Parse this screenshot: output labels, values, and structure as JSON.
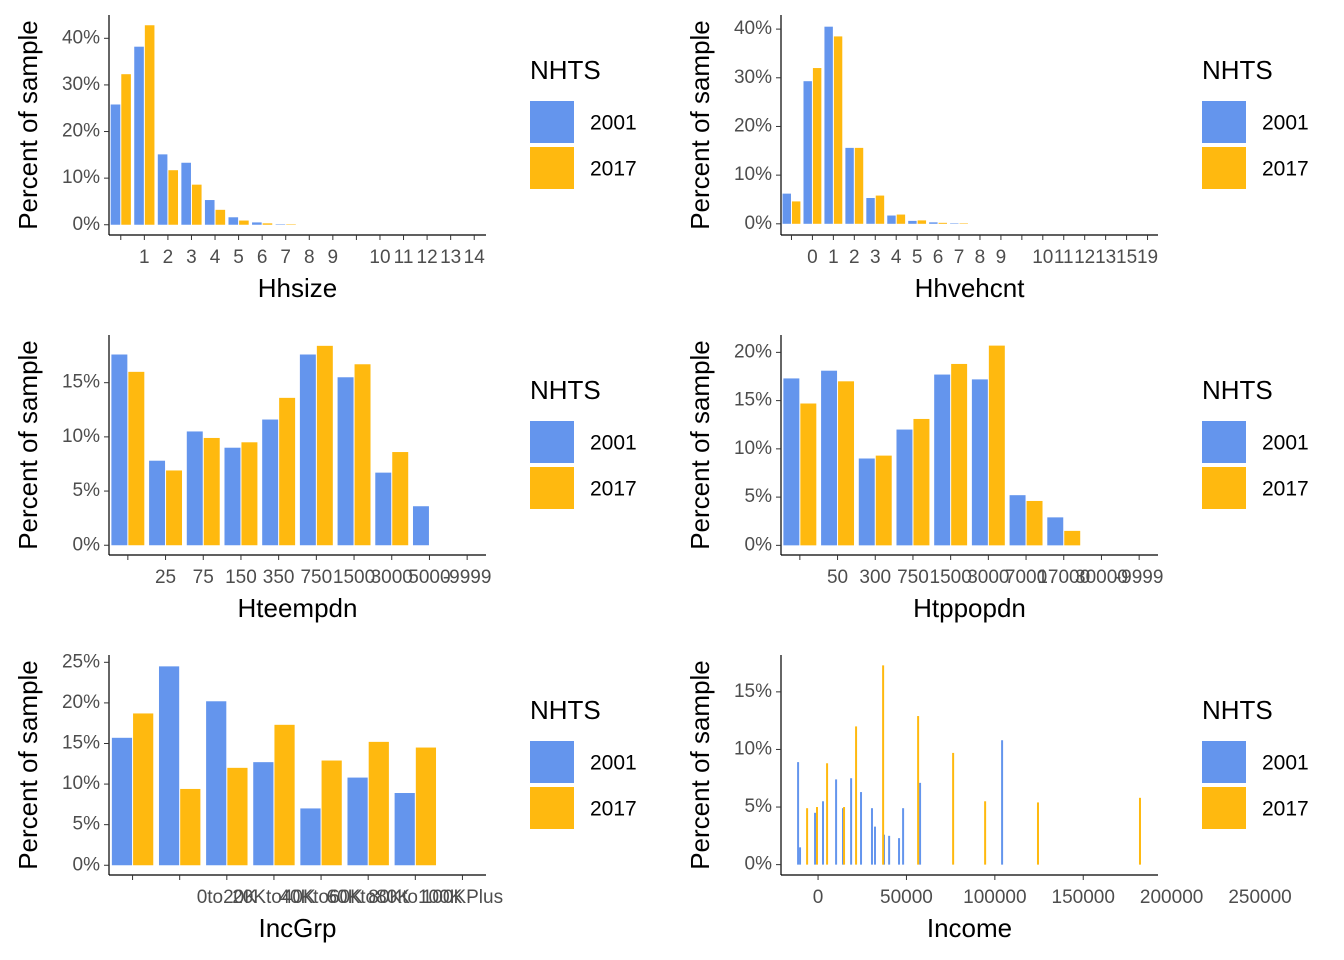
{
  "chart_data": [
    {
      "type": "bar",
      "y_label": "Percent of sample",
      "x_label": "Hhsize",
      "legend_title": "NHTS",
      "categories": [
        null,
        "1",
        "2",
        "3",
        "4",
        "5",
        "6",
        "7",
        "8",
        "9",
        null,
        "10",
        "11",
        "12",
        "13",
        "14"
      ],
      "series": [
        {
          "name": "2001",
          "color": "#6495ED",
          "values": [
            25.8,
            38.2,
            15.1,
            13.3,
            5.3,
            1.6,
            0.5,
            0.1,
            0,
            0,
            0,
            0,
            0,
            0,
            0,
            0
          ]
        },
        {
          "name": "2017",
          "color": "#FFB90F",
          "values": [
            32.3,
            42.8,
            11.7,
            8.6,
            3.2,
            0.9,
            0.3,
            0.1,
            0,
            0,
            0,
            0,
            0,
            0,
            0,
            0
          ]
        }
      ],
      "ylim": [
        -2.2,
        45
      ],
      "yticks": [
        {
          "value": 0,
          "label": "0%"
        },
        {
          "value": 10,
          "label": "10%"
        },
        {
          "value": 20,
          "label": "20%"
        },
        {
          "value": 30,
          "label": "30%"
        },
        {
          "value": 40,
          "label": "40%"
        }
      ]
    },
    {
      "type": "bar",
      "y_label": "Percent of sample",
      "x_label": "Hhvehcnt",
      "legend_title": "NHTS",
      "categories": [
        null,
        "0",
        "1",
        "2",
        "3",
        "4",
        "5",
        "6",
        "7",
        "8",
        "9",
        null,
        "10",
        "11",
        "12",
        "13",
        "15",
        "19"
      ],
      "series": [
        {
          "name": "2001",
          "color": "#6495ED",
          "values": [
            6.2,
            29.3,
            40.5,
            15.6,
            5.3,
            1.7,
            0.6,
            0.3,
            0.1,
            0,
            0,
            0,
            0,
            0,
            0,
            0,
            0,
            0
          ]
        },
        {
          "name": "2017",
          "color": "#FFB90F",
          "values": [
            4.6,
            32.0,
            38.5,
            15.6,
            5.8,
            1.9,
            0.7,
            0.2,
            0.1,
            0,
            0,
            0,
            0,
            0,
            0,
            0,
            0,
            0
          ]
        }
      ],
      "ylim": [
        -2.3,
        42.9
      ],
      "yticks": [
        {
          "value": 0,
          "label": "0%"
        },
        {
          "value": 10,
          "label": "10%"
        },
        {
          "value": 20,
          "label": "20%"
        },
        {
          "value": 30,
          "label": "30%"
        },
        {
          "value": 40,
          "label": "40%"
        }
      ]
    },
    {
      "type": "bar",
      "y_label": "Percent of sample",
      "x_label": "Hteempdn",
      "legend_title": "NHTS",
      "categories": [
        null,
        "25",
        "75",
        "150",
        "350",
        "750",
        "1500",
        "3000",
        "5000",
        "-9999"
      ],
      "series": [
        {
          "name": "2001",
          "color": "#6495ED",
          "values": [
            17.6,
            7.8,
            10.5,
            9.0,
            11.6,
            17.6,
            15.5,
            6.7,
            3.6,
            null
          ]
        },
        {
          "name": "2017",
          "color": "#FFB90F",
          "values": [
            16.0,
            6.9,
            9.9,
            9.5,
            13.6,
            18.4,
            16.7,
            8.6,
            null,
            null
          ]
        }
      ],
      "ylim": [
        -0.9,
        19.4
      ],
      "yticks": [
        {
          "value": 0,
          "label": "0%"
        },
        {
          "value": 5,
          "label": "5%"
        },
        {
          "value": 10,
          "label": "10%"
        },
        {
          "value": 15,
          "label": "15%"
        }
      ]
    },
    {
      "type": "bar",
      "y_label": "Percent of sample",
      "x_label": "Htppopdn",
      "legend_title": "NHTS",
      "categories": [
        null,
        "50",
        "300",
        "750",
        "1500",
        "3000",
        "7000",
        "17000",
        "30000",
        "-9999"
      ],
      "series": [
        {
          "name": "2001",
          "color": "#6495ED",
          "values": [
            17.3,
            18.1,
            9.0,
            12.0,
            17.7,
            17.2,
            5.2,
            2.9,
            null,
            null
          ]
        },
        {
          "name": "2017",
          "color": "#FFB90F",
          "values": [
            14.7,
            17.0,
            9.3,
            13.1,
            18.8,
            20.7,
            4.6,
            1.5,
            null,
            null
          ]
        }
      ],
      "ylim": [
        -1.0,
        21.8
      ],
      "yticks": [
        {
          "value": 0,
          "label": "0%"
        },
        {
          "value": 5,
          "label": "5%"
        },
        {
          "value": 10,
          "label": "10%"
        },
        {
          "value": 15,
          "label": "15%"
        },
        {
          "value": 20,
          "label": "20%"
        }
      ]
    },
    {
      "type": "bar",
      "y_label": "Percent of sample",
      "x_label": "IncGrp",
      "legend_title": "NHTS",
      "categories": [
        null,
        null,
        "0to20K",
        "20Kto40K",
        "40Kto60K",
        "60Kto80K",
        "80Kto100K",
        "100KPlus"
      ],
      "series": [
        {
          "name": "2001",
          "color": "#6495ED",
          "values": [
            15.7,
            24.5,
            20.2,
            12.7,
            7.0,
            10.8,
            8.9,
            null
          ]
        },
        {
          "name": "2017",
          "color": "#FFB90F",
          "values": [
            18.7,
            9.4,
            12.0,
            17.3,
            12.9,
            15.2,
            14.5,
            null
          ]
        }
      ],
      "ylim": [
        -1.2,
        25.9
      ],
      "yticks": [
        {
          "value": 0,
          "label": "0%"
        },
        {
          "value": 5,
          "label": "5%"
        },
        {
          "value": 10,
          "label": "10%"
        },
        {
          "value": 15,
          "label": "15%"
        },
        {
          "value": 20,
          "label": "20%"
        },
        {
          "value": 25,
          "label": "25%"
        }
      ]
    },
    {
      "type": "spike",
      "y_label": "Percent of sample",
      "x_label": "Income",
      "legend_title": "NHTS",
      "series": [
        {
          "name": "2001",
          "color": "#6495ED",
          "x": [
            -11300,
            -10200,
            -1700,
            2800,
            10200,
            14100,
            18700,
            24300,
            30500,
            32200,
            37300,
            40200,
            45800,
            48100,
            57700,
            104100
          ],
          "values": [
            8.9,
            1.5,
            4.5,
            5.5,
            7.4,
            4.9,
            7.5,
            6.3,
            4.9,
            3.3,
            2.6,
            2.5,
            2.3,
            4.9,
            7.1,
            10.8
          ]
        },
        {
          "name": "2017",
          "color": "#FFB90F",
          "x": [
            -6200,
            -600,
            5100,
            14700,
            21500,
            36800,
            56600,
            76400,
            94500,
            124400,
            182100
          ],
          "values": [
            4.9,
            5.0,
            8.8,
            5.0,
            12.0,
            17.3,
            12.9,
            9.7,
            5.5,
            5.4,
            5.8
          ]
        }
      ],
      "xlim": [
        -20400,
        261300
      ],
      "xticks": [
        0,
        50000,
        100000,
        150000,
        200000,
        250000
      ],
      "ylim": [
        -0.9,
        18.2
      ],
      "yticks": [
        {
          "value": 0,
          "label": "0%"
        },
        {
          "value": 5,
          "label": "5%"
        },
        {
          "value": 10,
          "label": "10%"
        },
        {
          "value": 15,
          "label": "15%"
        }
      ]
    }
  ]
}
